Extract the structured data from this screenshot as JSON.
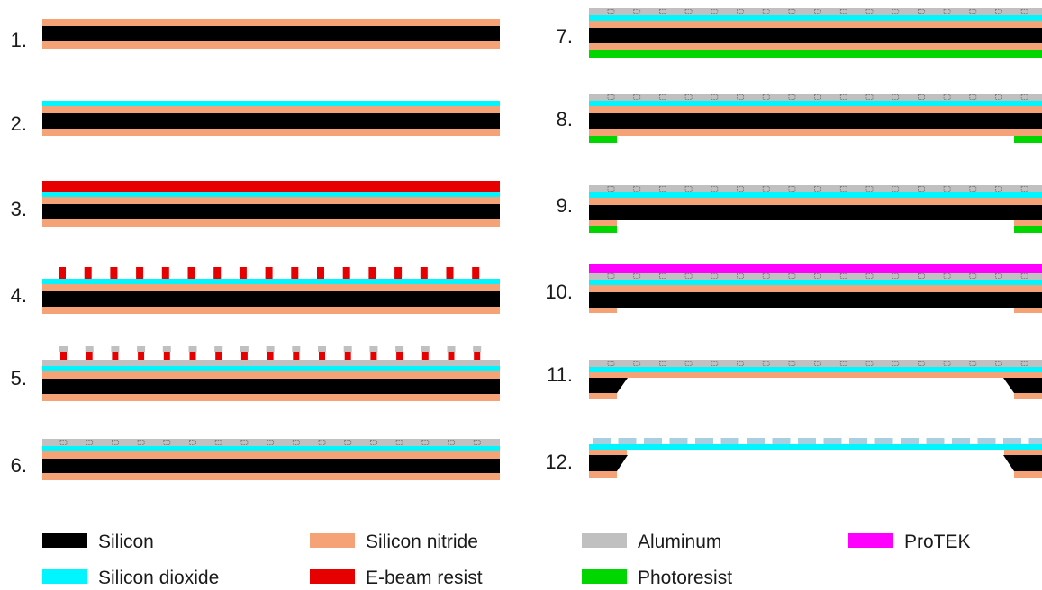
{
  "materials": {
    "silicon": {
      "label": "Silicon",
      "color": "#000000"
    },
    "nitride": {
      "label": "Silicon nitride",
      "color": "#f4a276"
    },
    "oxide": {
      "label": "Silicon dioxide",
      "color": "#00f5ff"
    },
    "ebeam": {
      "label": "E-beam resist",
      "color": "#e60000"
    },
    "aluminum": {
      "label": "Aluminum",
      "color": "#c0c0c0"
    },
    "photoresist": {
      "label": "Photoresist",
      "color": "#00d600"
    },
    "protek": {
      "label": "ProTEK",
      "color": "#ff00ff"
    }
  },
  "legend": [
    "silicon",
    "nitride",
    "aluminum",
    "protek",
    "oxide",
    "ebeam",
    "photoresist"
  ],
  "steps": [
    "1.",
    "2.",
    "3.",
    "4.",
    "5.",
    "6.",
    "7.",
    "8.",
    "9.",
    "10.",
    "11.",
    "12."
  ]
}
